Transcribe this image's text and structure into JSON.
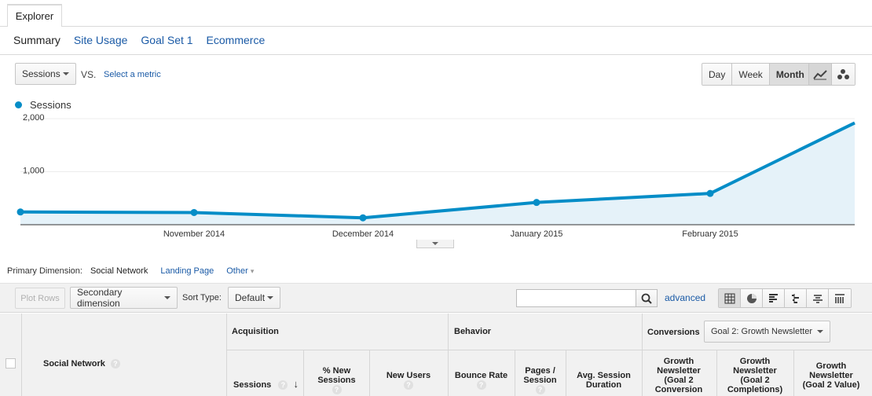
{
  "tabs": {
    "explorer": "Explorer"
  },
  "subtabs": [
    "Summary",
    "Site Usage",
    "Goal Set 1",
    "Ecommerce"
  ],
  "controls": {
    "metric": "Sessions",
    "vs": "VS.",
    "select_metric": "Select a metric",
    "periods": [
      "Day",
      "Week",
      "Month"
    ],
    "active_period": "Month"
  },
  "legend": {
    "series_name": "Sessions"
  },
  "chart_data": {
    "type": "area",
    "series": [
      {
        "name": "Sessions",
        "values": [
          240,
          230,
          130,
          420,
          590,
          1920
        ]
      }
    ],
    "x_labels": [
      "November 2014",
      "December 2014",
      "January 2015",
      "February 2015"
    ],
    "y_ticks": [
      "1,000",
      "2,000"
    ],
    "ylim": [
      0,
      2000
    ],
    "color": "#058dc7"
  },
  "primary_dimension": {
    "label": "Primary Dimension:",
    "current": "Social Network",
    "options": [
      "Landing Page",
      "Other"
    ]
  },
  "toolbar": {
    "plot_rows": "Plot Rows",
    "secondary_dimension": "Secondary dimension",
    "sort_type_label": "Sort Type:",
    "sort_type_value": "Default",
    "advanced": "advanced"
  },
  "table": {
    "dimension_header": "Social Network",
    "groups": {
      "acquisition": "Acquisition",
      "behavior": "Behavior",
      "conversions": "Conversions"
    },
    "goal_select": "Goal 2: Growth Newsletter",
    "columns": {
      "sessions": "Sessions",
      "new_sessions": "% New Sessions",
      "new_users": "New Users",
      "bounce_rate": "Bounce Rate",
      "pages_session": "Pages / Session",
      "avg_duration": "Avg. Session Duration",
      "goal_conv": "Growth Newsletter (Goal 2 Conversion",
      "goal_compl": "Growth Newsletter (Goal 2 Completions)",
      "goal_value": "Growth Newsletter (Goal 2 Value)"
    }
  }
}
